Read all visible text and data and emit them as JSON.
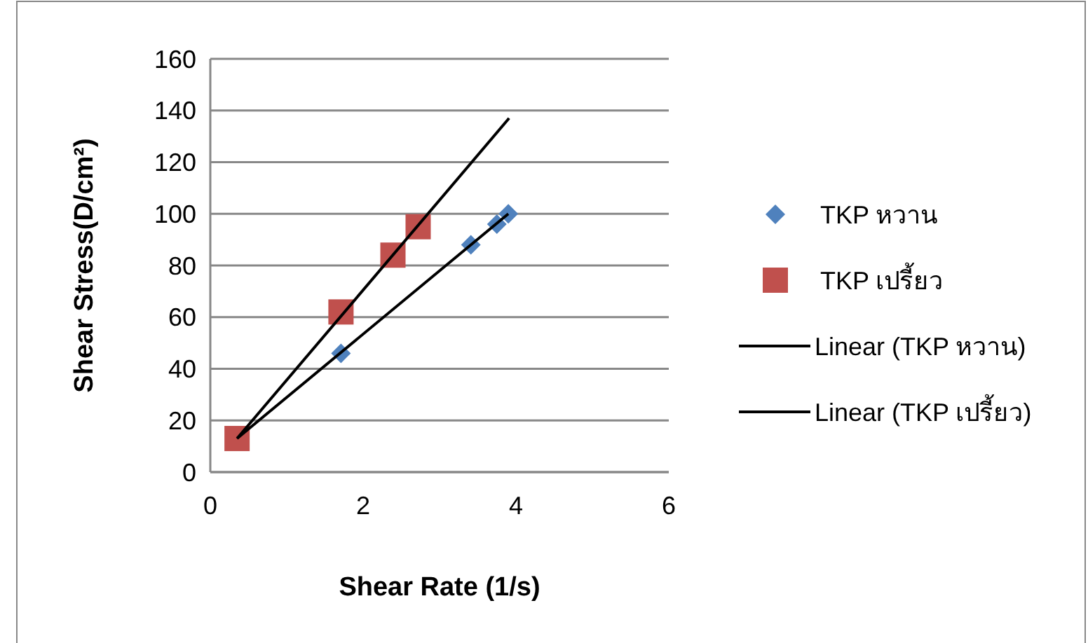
{
  "chart_data": {
    "type": "scatter",
    "xlabel": "Shear Rate (1/s)",
    "ylabel": "Shear Stress(D/cm²)",
    "xlim": [
      0,
      6
    ],
    "xticks": [
      0,
      2,
      4,
      6
    ],
    "ylim": [
      0,
      160
    ],
    "yticks": [
      0,
      20,
      40,
      60,
      80,
      100,
      120,
      140,
      160
    ],
    "grid": "y",
    "legend": "right",
    "series": [
      {
        "name": "TKP หวาน",
        "marker": "diamond",
        "color": "#4f81bd",
        "x": [
          1.71,
          3.41,
          3.75,
          3.9
        ],
        "values": [
          46,
          88,
          96,
          100
        ]
      },
      {
        "name": "TKP เปรี้ยว",
        "marker": "square",
        "color": "#c0504d",
        "x": [
          0.35,
          1.71,
          2.39,
          2.72
        ],
        "values": [
          13,
          62,
          84,
          95
        ]
      },
      {
        "name": "Linear (TKP หวาน)",
        "type": "line",
        "marker": "none",
        "color": "#000000",
        "x": [
          0.35,
          3.9
        ],
        "values": [
          13,
          100
        ]
      },
      {
        "name": "Linear (TKP เปรี้ยว)",
        "type": "line",
        "marker": "none",
        "color": "#000000",
        "x": [
          0.35,
          3.91
        ],
        "values": [
          13,
          137
        ]
      }
    ]
  }
}
